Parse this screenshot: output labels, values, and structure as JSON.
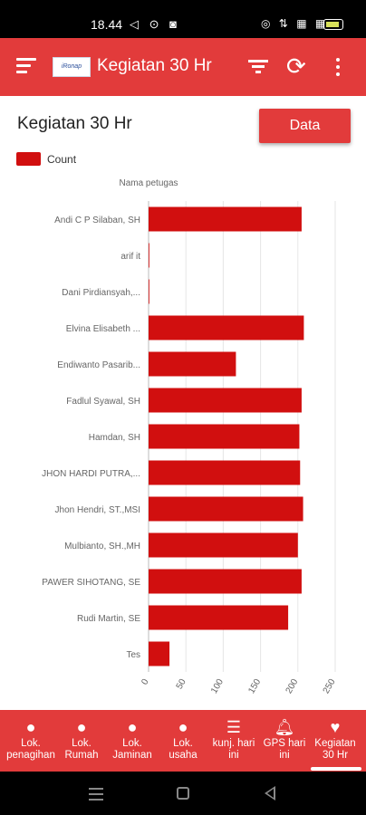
{
  "status_bar": {
    "time": "18.44",
    "left_icons": "◁ ⊙ ◙",
    "right_icons": "⊙ •",
    "signal_icons": "◎ ⇅ ▦ ▦"
  },
  "app_bar": {
    "title": "Kegiatan 30 Hr",
    "logo_text": "iRonap"
  },
  "page": {
    "title": "Kegiatan 30 Hr",
    "data_button_label": "Data"
  },
  "colors": {
    "accent": "#e23b3b",
    "bar": "#d10f0f"
  },
  "chart_data": {
    "type": "bar",
    "orientation": "horizontal",
    "title": "",
    "ylabel": "Nama petugas",
    "xlabel": "",
    "legend": {
      "entries": [
        "Count"
      ],
      "placement": "top-left"
    },
    "categories": [
      "Andi C P Silaban, SH",
      "arif it",
      "Dani Pirdiansyah,...",
      "Elvina Elisabeth ...",
      "Endiwanto Pasarib...",
      "Fadlul Syawal, SH",
      "Hamdan, SH",
      "JHON HARDI PUTRA,...",
      "Jhon Hendri, ST.,MSI",
      "Mulbianto, SH.,MH",
      "PAWER SIHOTANG, SE",
      "Rudi Martin, SE",
      "Tes"
    ],
    "series": [
      {
        "name": "Count",
        "values": [
          205,
          1,
          1,
          208,
          117,
          205,
          202,
          203,
          207,
          200,
          205,
          187,
          28
        ]
      }
    ],
    "xlim": [
      0,
      250
    ],
    "xticks": [
      0,
      50,
      100,
      150,
      200,
      250
    ],
    "grid": true
  },
  "bottom_nav": {
    "items": [
      {
        "label_1": "Lok.",
        "label_2": "penagihan",
        "icon": "location-pin-icon",
        "glyph": "●"
      },
      {
        "label_1": "Lok.",
        "label_2": "Rumah",
        "icon": "location-pin-icon",
        "glyph": "●"
      },
      {
        "label_1": "Lok.",
        "label_2": "Jaminan",
        "icon": "location-pin-icon",
        "glyph": "●"
      },
      {
        "label_1": "Lok.",
        "label_2": "usaha",
        "icon": "location-pin-icon",
        "glyph": "●"
      },
      {
        "label_1": "kunj. hari",
        "label_2": "ini",
        "icon": "list-icon",
        "glyph": "☰"
      },
      {
        "label_1": "GPS hari",
        "label_2": "ini",
        "icon": "bell-icon",
        "glyph": "🔔︎"
      },
      {
        "label_1": "Kegiatan",
        "label_2": "30 Hr",
        "icon": "heart-icon",
        "glyph": "♥"
      }
    ]
  }
}
